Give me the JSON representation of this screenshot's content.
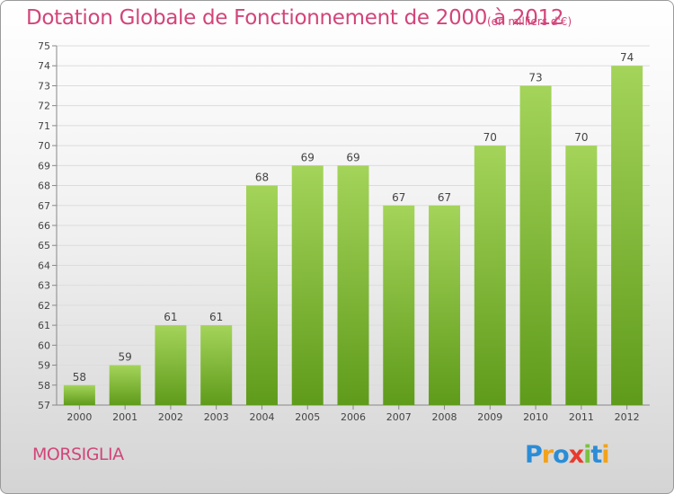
{
  "title": "Dotation Globale de Fonctionnement de 2000 à 2012",
  "unit": "(en milliers d'€)",
  "commune": "MORSIGLIA",
  "logo": {
    "letters": [
      "P",
      "r",
      "o",
      "x",
      "i",
      "t",
      "i"
    ],
    "colors": [
      "#2b8dd6",
      "#f3a21a",
      "#2b8dd6",
      "#e83b2e",
      "#7cc242",
      "#2b8dd6",
      "#f3a21a"
    ]
  },
  "colors": {
    "accent": "#d2457a",
    "bar_light": "#a4d45a",
    "bar_dark": "#5f9b1b"
  },
  "chart_data": {
    "type": "bar",
    "categories": [
      "2000",
      "2001",
      "2002",
      "2003",
      "2004",
      "2005",
      "2006",
      "2007",
      "2008",
      "2009",
      "2010",
      "2011",
      "2012"
    ],
    "values": [
      58,
      59,
      61,
      61,
      68,
      69,
      69,
      67,
      67,
      70,
      73,
      70,
      74
    ],
    "ylim": [
      57,
      75
    ],
    "yticks": [
      57,
      58,
      59,
      60,
      61,
      62,
      63,
      64,
      65,
      66,
      67,
      68,
      69,
      70,
      71,
      72,
      73,
      74,
      75
    ],
    "grid": true,
    "data_labels": true
  }
}
